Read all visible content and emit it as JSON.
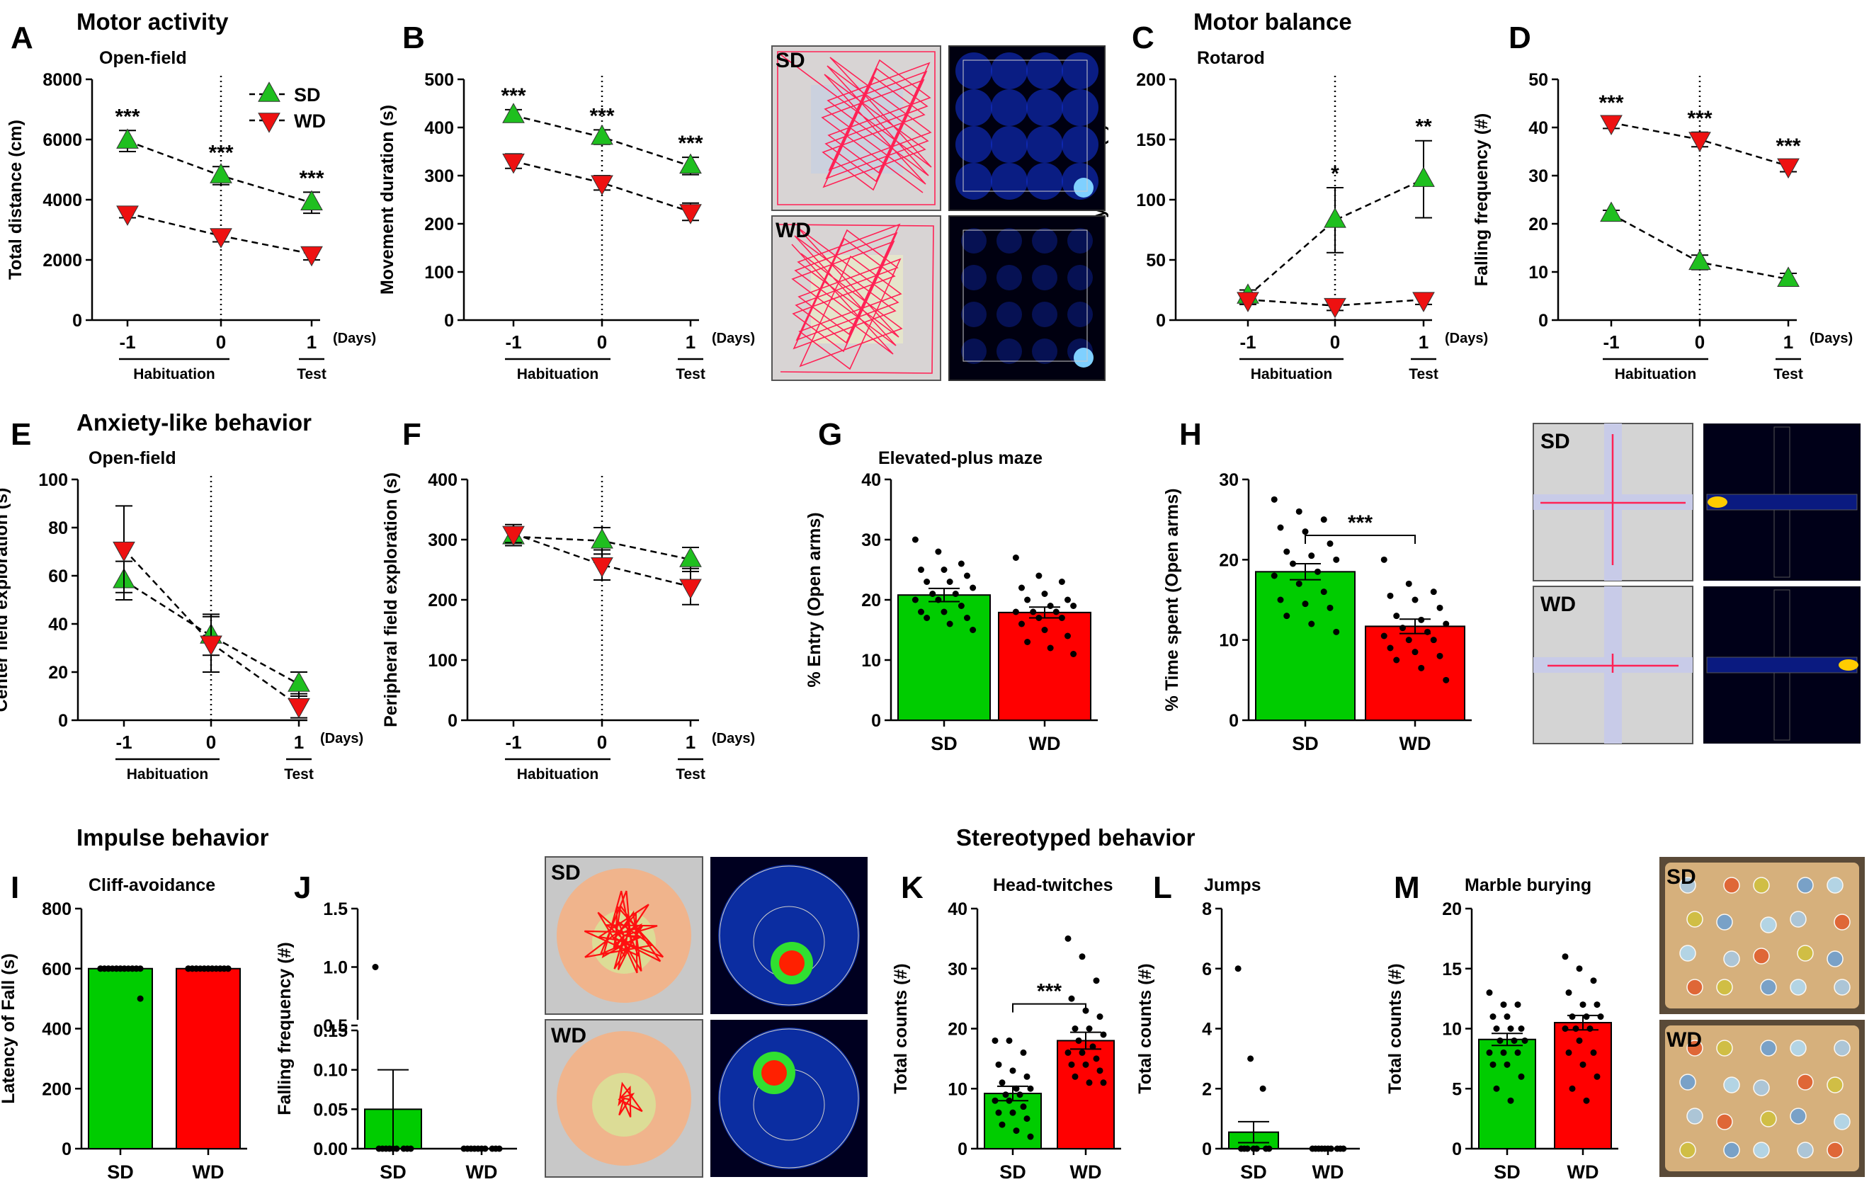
{
  "sections": {
    "motor_activity": "Motor activity",
    "motor_balance": "Motor balance",
    "anxiety": "Anxiety-like behavior",
    "impulse": "Impulse behavior",
    "stereotyped": "Stereotyped behavior"
  },
  "groups": {
    "sd": "SD",
    "wd": "WD"
  },
  "colors": {
    "sd": "#1fbf1f",
    "wd": "#ee1111",
    "sd_bar": "#00cc00",
    "wd_bar": "#ff0000",
    "track": "#ff2255",
    "tray": "#d6b07c"
  },
  "axis_common": {
    "days_label": "(Days)",
    "x_ticks": [
      "-1",
      "0",
      "1"
    ],
    "habituation": "Habituation",
    "test": "Test"
  },
  "chart_data": [
    {
      "id": "A",
      "type": "line",
      "letter": "A",
      "title": "Open-field",
      "ylabel": "Total distance (cm)",
      "ylim": [
        0,
        8000
      ],
      "yticks": [
        0,
        2000,
        4000,
        6000,
        8000
      ],
      "x": [
        -1,
        0,
        1
      ],
      "series": [
        {
          "name": "SD",
          "values": [
            5950,
            4800,
            3900
          ],
          "err": [
            350,
            300,
            350
          ]
        },
        {
          "name": "WD",
          "values": [
            3550,
            2800,
            2200
          ],
          "err": [
            150,
            200,
            200
          ]
        }
      ],
      "sig": [
        "***",
        "***",
        "***"
      ]
    },
    {
      "id": "B",
      "type": "line",
      "letter": "B",
      "title": "",
      "ylabel": "Movement duration (s)",
      "ylim": [
        0,
        500
      ],
      "yticks": [
        0,
        100,
        200,
        300,
        400,
        500
      ],
      "x": [
        -1,
        0,
        1
      ],
      "series": [
        {
          "name": "SD",
          "values": [
            425,
            380,
            320
          ],
          "err": [
            12,
            15,
            18
          ]
        },
        {
          "name": "WD",
          "values": [
            330,
            285,
            225
          ],
          "err": [
            15,
            15,
            18
          ]
        }
      ],
      "sig": [
        "***",
        "***",
        "***"
      ]
    },
    {
      "id": "C",
      "type": "line",
      "letter": "C",
      "title": "Rotarod",
      "ylabel": "Latency of Fall (s)",
      "ylim": [
        0,
        200
      ],
      "yticks": [
        0,
        50,
        100,
        150,
        200
      ],
      "x": [
        -1,
        0,
        1
      ],
      "series": [
        {
          "name": "SD",
          "values": [
            20,
            83,
            117
          ],
          "err": [
            5,
            27,
            32
          ]
        },
        {
          "name": "WD",
          "values": [
            17,
            12,
            17
          ],
          "err": [
            4,
            4,
            4
          ]
        }
      ],
      "sig": [
        "",
        "*",
        "**"
      ]
    },
    {
      "id": "D",
      "type": "line",
      "letter": "D",
      "title": "",
      "ylabel": "Falling frequency (#)",
      "ylim": [
        0,
        50
      ],
      "yticks": [
        0,
        10,
        20,
        30,
        40,
        50
      ],
      "x": [
        -1,
        0,
        1
      ],
      "series": [
        {
          "name": "SD",
          "values": [
            22,
            12,
            8.5
          ],
          "err": [
            0.8,
            1.5,
            1.2
          ]
        },
        {
          "name": "WD",
          "values": [
            41,
            37.5,
            32
          ],
          "err": [
            1.2,
            1.5,
            1.2
          ]
        }
      ],
      "sig": [
        "***",
        "***",
        "***"
      ]
    },
    {
      "id": "E",
      "type": "line",
      "letter": "E",
      "title": "Open-field",
      "ylabel": "Center field exploration (s)",
      "ylim": [
        0,
        100
      ],
      "yticks": [
        0,
        20,
        40,
        60,
        80,
        100
      ],
      "x": [
        -1,
        0,
        1
      ],
      "series": [
        {
          "name": "SD",
          "values": [
            58,
            35,
            15
          ],
          "err": [
            8,
            8,
            5
          ]
        },
        {
          "name": "WD",
          "values": [
            71,
            32,
            6
          ],
          "err": [
            18,
            12,
            5
          ]
        }
      ],
      "sig": [
        "",
        "",
        ""
      ]
    },
    {
      "id": "F",
      "type": "line",
      "letter": "F",
      "title": "",
      "ylabel": "Peripheral field exploration (s)",
      "ylim": [
        0,
        400
      ],
      "yticks": [
        0,
        100,
        200,
        300,
        400
      ],
      "x": [
        -1,
        0,
        1
      ],
      "series": [
        {
          "name": "SD",
          "values": [
            305,
            298,
            267
          ],
          "err": [
            15,
            22,
            20
          ]
        },
        {
          "name": "WD",
          "values": [
            310,
            258,
            222
          ],
          "err": [
            15,
            25,
            30
          ]
        }
      ],
      "sig": [
        "",
        "",
        ""
      ]
    },
    {
      "id": "G",
      "type": "bar",
      "letter": "G",
      "title": "Elevated-plus maze",
      "ylabel": "% Entry (Open arms)",
      "ylim": [
        0,
        40
      ],
      "yticks": [
        0,
        10,
        20,
        30,
        40
      ],
      "categories": [
        "SD",
        "WD"
      ],
      "values": [
        20.8,
        17.9
      ],
      "err": [
        1.1,
        0.9
      ],
      "sig": "",
      "points": [
        [
          30,
          28,
          26,
          25,
          25,
          24,
          23,
          23,
          22,
          21,
          21,
          20,
          20,
          19,
          18,
          18,
          17,
          17,
          16,
          15
        ],
        [
          27,
          24,
          23,
          22,
          21,
          20,
          20,
          19,
          19,
          18,
          18,
          18,
          17,
          17,
          16,
          15,
          14,
          13,
          12,
          11
        ]
      ]
    },
    {
      "id": "H",
      "type": "bar",
      "letter": "H",
      "title": "",
      "ylabel": "% Time spent (Open arms)",
      "ylim": [
        0,
        30
      ],
      "yticks": [
        0,
        10,
        20,
        30
      ],
      "categories": [
        "SD",
        "WD"
      ],
      "values": [
        18.5,
        11.7
      ],
      "err": [
        1.0,
        0.9
      ],
      "sig": "***",
      "points": [
        [
          27.5,
          26,
          25,
          24,
          23.5,
          22,
          21,
          20.5,
          20,
          19.5,
          18.5,
          18,
          17,
          16,
          15,
          14.5,
          14,
          13,
          12,
          11
        ],
        [
          20,
          17,
          16,
          15.5,
          15,
          14,
          13,
          12.5,
          12,
          11.5,
          11,
          10.5,
          10,
          10,
          9,
          8.5,
          8,
          7.5,
          6.5,
          5
        ]
      ]
    },
    {
      "id": "I",
      "type": "bar",
      "letter": "I",
      "title": "Cliff-avoidance",
      "ylabel": "Latency of Fall (s)",
      "ylim": [
        0,
        800
      ],
      "yticks": [
        0,
        200,
        400,
        600,
        800
      ],
      "categories": [
        "SD",
        "WD"
      ],
      "values": [
        600,
        600
      ],
      "err": [
        0,
        0
      ],
      "sig": "",
      "points": [
        [
          600,
          600,
          600,
          600,
          600,
          600,
          600,
          600,
          600,
          600,
          600,
          600,
          600,
          600,
          600,
          600,
          600,
          600,
          600,
          500
        ],
        [
          600,
          600,
          600,
          600,
          600,
          600,
          600,
          600,
          600,
          600,
          600,
          600,
          600,
          600,
          600,
          600,
          600,
          600,
          600,
          600
        ]
      ]
    },
    {
      "id": "J",
      "type": "bar",
      "letter": "J",
      "title": "",
      "ylabel": "Falling frequency (#)",
      "ylim": [
        0,
        1.5
      ],
      "yticks": [
        0,
        0.05,
        0.1,
        0.15,
        0.5,
        1.0,
        1.5
      ],
      "ytick_labels": [
        "0.00",
        "0.05",
        "0.10",
        "0.15",
        "0.5",
        "1.0",
        "1.5"
      ],
      "categories": [
        "SD",
        "WD"
      ],
      "values": [
        0.05,
        0
      ],
      "err": [
        0.05,
        0
      ],
      "sig": "",
      "points": [
        [
          1.0,
          0,
          0,
          0,
          0,
          0,
          0,
          0,
          0,
          0
        ],
        [
          0,
          0,
          0,
          0,
          0,
          0,
          0,
          0,
          0,
          0
        ]
      ]
    },
    {
      "id": "K",
      "type": "bar",
      "letter": "K",
      "title": "Head-twitches",
      "ylabel": "Total counts (#)",
      "ylim": [
        0,
        40
      ],
      "yticks": [
        0,
        10,
        20,
        30,
        40
      ],
      "categories": [
        "SD",
        "WD"
      ],
      "values": [
        9.2,
        18.0
      ],
      "err": [
        1.2,
        1.4
      ],
      "sig": "***",
      "points": [
        [
          18,
          18,
          16,
          14,
          13,
          12,
          11,
          10,
          10,
          9,
          9,
          8,
          8,
          7,
          6,
          6,
          5,
          4,
          3,
          2
        ],
        [
          35,
          32,
          28,
          25,
          23,
          22,
          20,
          20,
          19,
          18,
          17,
          16,
          16,
          15,
          14,
          14,
          13,
          12,
          11,
          11
        ]
      ]
    },
    {
      "id": "L",
      "type": "bar",
      "letter": "L",
      "title": "Jumps",
      "ylabel": "Total counts (#)",
      "ylim": [
        0,
        8
      ],
      "yticks": [
        0,
        2,
        4,
        6,
        8
      ],
      "categories": [
        "SD",
        "WD"
      ],
      "values": [
        0.55,
        0
      ],
      "err": [
        0.35,
        0
      ],
      "sig": "",
      "points": [
        [
          6,
          3,
          2,
          0,
          0,
          0,
          0,
          0,
          0,
          0
        ],
        [
          0,
          0,
          0,
          0,
          0,
          0,
          0,
          0,
          0,
          0
        ]
      ]
    },
    {
      "id": "M",
      "type": "bar",
      "letter": "M",
      "title": "Marble burying",
      "ylabel": "Total counts (#)",
      "ylim": [
        0,
        20
      ],
      "yticks": [
        0,
        5,
        10,
        15,
        20
      ],
      "categories": [
        "SD",
        "WD"
      ],
      "values": [
        9.1,
        10.5
      ],
      "err": [
        0.5,
        0.6
      ],
      "sig": "",
      "points": [
        [
          13,
          12,
          12,
          11,
          11,
          10,
          10,
          10,
          9,
          9,
          9,
          8,
          8,
          8,
          7,
          7,
          6,
          5,
          4
        ],
        [
          16,
          15,
          14,
          13,
          12,
          12,
          11,
          11,
          11,
          10,
          10,
          10,
          9,
          8,
          8,
          7,
          6,
          5,
          4
        ]
      ]
    }
  ]
}
